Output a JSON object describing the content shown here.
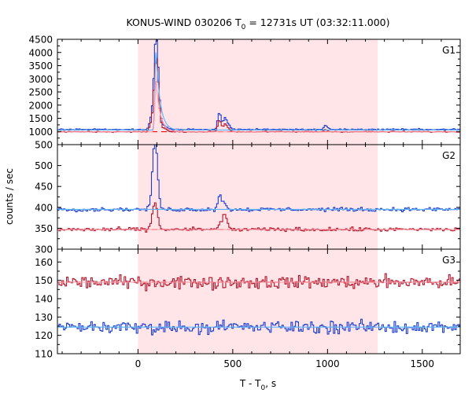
{
  "chart_data": {
    "type": "line",
    "title": {
      "prefix": "KONUS-WIND 030206 T",
      "sub": "0",
      "suffix": " = 12731s UT (03:32:11.000)"
    },
    "xlabel": {
      "prefix": "T - T",
      "sub": "0",
      "suffix": ", s"
    },
    "ylabel": "counts / sec",
    "xlim": [
      -425,
      1700
    ],
    "xticks": [
      0,
      500,
      1000,
      1500
    ],
    "xtick_labels": [
      "0",
      "500",
      "1000",
      "1500"
    ],
    "shaded_interval": [
      0,
      1265
    ],
    "colors": {
      "background_total": "#e8001c",
      "background_dashed": "#ff0000",
      "shade": "#ffe5e8",
      "series_blue": "#1a3ccc",
      "series_red": "#b0142a",
      "fit_light": "#5ab4ff",
      "fit_pink": "#ff9aa8"
    },
    "panels": [
      {
        "name": "G1",
        "ylim": [
          500,
          4500
        ],
        "yticks": [
          4500,
          4000,
          3500,
          3000,
          2500,
          2000,
          1500,
          1000,
          500
        ],
        "ytick_labels": [
          "4500",
          "4000",
          "3500",
          "3000",
          "2500",
          "2000",
          "1500",
          "1000",
          "500"
        ],
        "series": [
          {
            "name": "blue-counts",
            "base": 1075,
            "noise": 25,
            "peaks": [
              [
                70,
                400
              ],
              [
                88,
                1200
              ],
              [
                96,
                1900
              ],
              [
                104,
                1250
              ],
              [
                118,
                320
              ],
              [
                140,
                90
              ],
              [
                150,
                60
              ],
              [
                430,
                650
              ],
              [
                460,
                450
              ],
              [
                480,
                150
              ],
              [
                990,
                160
              ]
            ]
          },
          {
            "name": "red-counts",
            "base": 990,
            "noise": 20,
            "peaks": [
              [
                70,
                300
              ],
              [
                88,
                1000
              ],
              [
                96,
                1500
              ],
              [
                104,
                1000
              ],
              [
                118,
                250
              ],
              [
                140,
                80
              ],
              [
                150,
                50
              ],
              [
                430,
                450
              ],
              [
                460,
                300
              ],
              [
                480,
                100
              ],
              [
                990,
                80
              ]
            ]
          }
        ],
        "dashed_level": 990,
        "fit_light": {
          "base": 1055,
          "spike_t": 95,
          "spike_v": 4050
        },
        "fit_pink": {
          "base": 985,
          "spike_t": 95,
          "spike_v": 2950
        }
      },
      {
        "name": "G2",
        "ylim": [
          300,
          550
        ],
        "yticks": [
          500,
          450,
          400,
          350,
          300
        ],
        "ytick_labels": [
          "500",
          "450",
          "400",
          "350",
          "300"
        ],
        "series": [
          {
            "name": "blue-counts",
            "base": 395,
            "noise": 4,
            "peaks": [
              [
                75,
                40
              ],
              [
                85,
                80
              ],
              [
                95,
                85
              ],
              [
                105,
                35
              ],
              [
                430,
                35
              ],
              [
                455,
                18
              ]
            ]
          },
          {
            "name": "red-counts",
            "base": 347,
            "noise": 4,
            "peaks": [
              [
                75,
                18
              ],
              [
                85,
                30
              ],
              [
                95,
                32
              ],
              [
                105,
                15
              ],
              [
                430,
                15
              ],
              [
                455,
                35
              ],
              [
                470,
                10
              ]
            ]
          }
        ],
        "dashed_level": 347,
        "fit_light": {
          "base": 395,
          "spike_t": 95,
          "spike_v": 395
        },
        "fit_pink": {
          "base": 347,
          "spike_t": 95,
          "spike_v": 347
        }
      },
      {
        "name": "G3",
        "ylim": [
          110,
          167
        ],
        "yticks": [
          160,
          150,
          140,
          130,
          120,
          110
        ],
        "ytick_labels": [
          "160",
          "150",
          "140",
          "130",
          "120",
          "110"
        ],
        "series": [
          {
            "name": "red-counts",
            "base": 149,
            "noise": 3,
            "peaks": []
          },
          {
            "name": "blue-counts",
            "base": 124.5,
            "noise": 3,
            "peaks": []
          }
        ],
        "dashed_level": 149,
        "fit_light": {
          "base": 124.5,
          "spike_t": 95,
          "spike_v": 124.5
        },
        "fit_pink": {
          "base": 149,
          "spike_t": 95,
          "spike_v": 149
        }
      }
    ]
  }
}
